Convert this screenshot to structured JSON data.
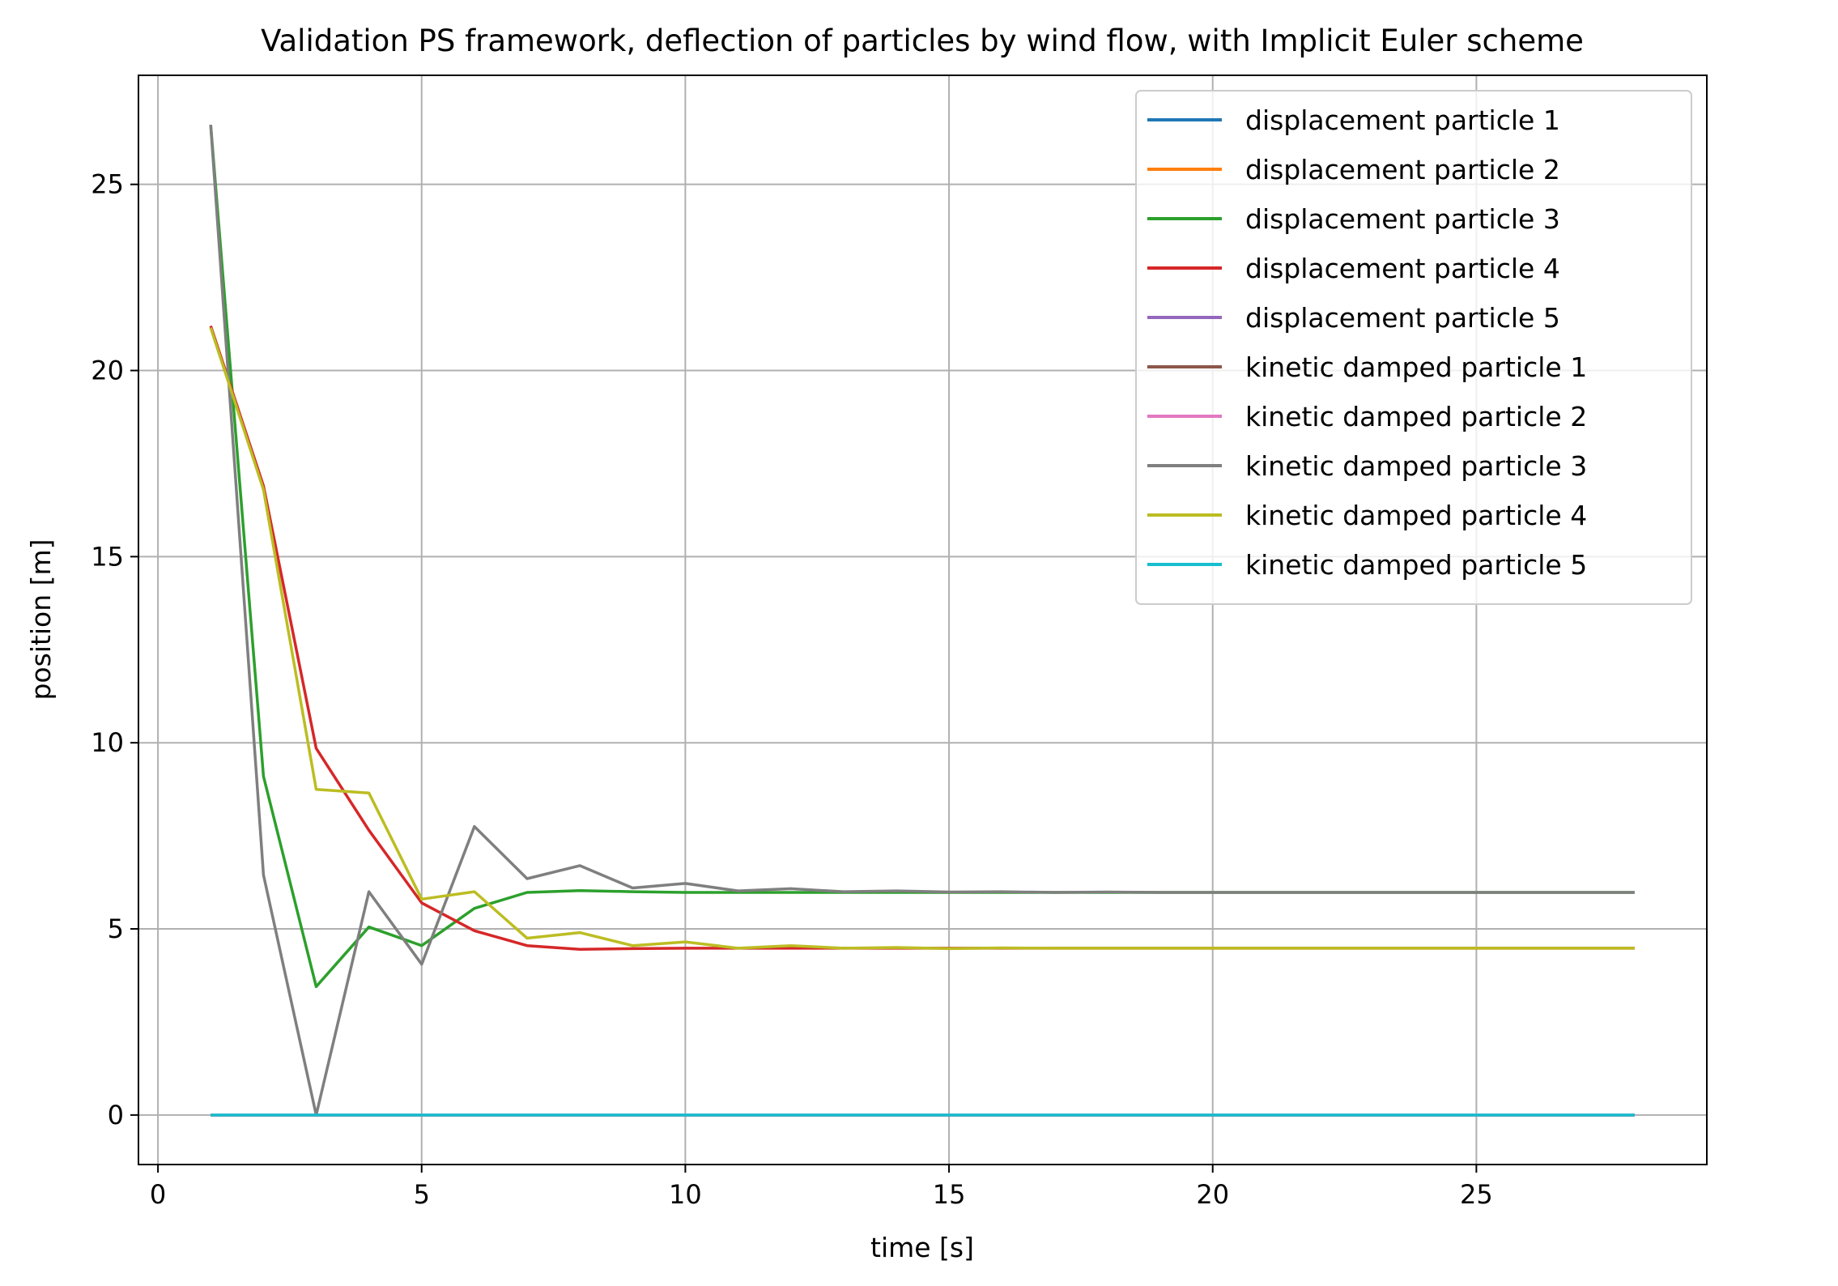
{
  "chart_data": {
    "type": "line",
    "title": "Validation PS framework, deflection of particles by wind flow, with Implicit Euler scheme",
    "xlabel": "time [s]",
    "ylabel": "position [m]",
    "xlim": [
      -0.37,
      29.37
    ],
    "ylim": [
      -1.33,
      27.93
    ],
    "xticks": [
      0,
      5,
      10,
      15,
      20,
      25
    ],
    "yticks": [
      0,
      5,
      10,
      15,
      20,
      25
    ],
    "xtick_labels": [
      "0",
      "5",
      "10",
      "15",
      "20",
      "25"
    ],
    "ytick_labels": [
      "0",
      "5",
      "10",
      "15",
      "20",
      "25"
    ],
    "grid": true,
    "legend_position": "top-right",
    "x": [
      1,
      2,
      3,
      4,
      5,
      6,
      7,
      8,
      9,
      10,
      11,
      12,
      13,
      14,
      15,
      16,
      17,
      18,
      19,
      20,
      21,
      22,
      23,
      24,
      25,
      26,
      27,
      28
    ],
    "series": [
      {
        "name": "displacement particle 1",
        "color": "#1f77b4",
        "values": [
          0,
          0,
          0,
          0,
          0,
          0,
          0,
          0,
          0,
          0,
          0,
          0,
          0,
          0,
          0,
          0,
          0,
          0,
          0,
          0,
          0,
          0,
          0,
          0,
          0,
          0,
          0,
          0
        ]
      },
      {
        "name": "displacement particle 2",
        "color": "#ff7f0e",
        "values": [
          0,
          0,
          0,
          0,
          0,
          0,
          0,
          0,
          0,
          0,
          0,
          0,
          0,
          0,
          0,
          0,
          0,
          0,
          0,
          0,
          0,
          0,
          0,
          0,
          0,
          0,
          0,
          0
        ]
      },
      {
        "name": "displacement particle 3",
        "color": "#2ca02c",
        "values": [
          26.6,
          9.1,
          3.45,
          5.05,
          4.55,
          5.55,
          5.98,
          6.03,
          6.0,
          5.98,
          5.98,
          5.98,
          5.98,
          5.98,
          5.98,
          5.98,
          5.98,
          5.98,
          5.98,
          5.98,
          5.98,
          5.98,
          5.98,
          5.98,
          5.98,
          5.98,
          5.98,
          5.98
        ]
      },
      {
        "name": "displacement particle 4",
        "color": "#d62728",
        "values": [
          21.2,
          16.9,
          9.85,
          7.65,
          5.7,
          4.95,
          4.55,
          4.45,
          4.47,
          4.48,
          4.48,
          4.48,
          4.48,
          4.48,
          4.48,
          4.48,
          4.48,
          4.48,
          4.48,
          4.48,
          4.48,
          4.48,
          4.48,
          4.48,
          4.48,
          4.48,
          4.48,
          4.48
        ]
      },
      {
        "name": "displacement particle 5",
        "color": "#9467bd",
        "values": [
          0,
          0,
          0,
          0,
          0,
          0,
          0,
          0,
          0,
          0,
          0,
          0,
          0,
          0,
          0,
          0,
          0,
          0,
          0,
          0,
          0,
          0,
          0,
          0,
          0,
          0,
          0,
          0
        ]
      },
      {
        "name": "kinetic damped particle 1",
        "color": "#8c564b",
        "values": [
          0,
          0,
          0,
          0,
          0,
          0,
          0,
          0,
          0,
          0,
          0,
          0,
          0,
          0,
          0,
          0,
          0,
          0,
          0,
          0,
          0,
          0,
          0,
          0,
          0,
          0,
          0,
          0
        ]
      },
      {
        "name": "kinetic damped particle 2",
        "color": "#e377c2",
        "values": [
          0,
          0,
          0,
          0,
          0,
          0,
          0,
          0,
          0,
          0,
          0,
          0,
          0,
          0,
          0,
          0,
          0,
          0,
          0,
          0,
          0,
          0,
          0,
          0,
          0,
          0,
          0,
          0
        ]
      },
      {
        "name": "kinetic damped particle 3",
        "color": "#7f7f7f",
        "values": [
          26.6,
          6.45,
          0.0,
          6.0,
          4.05,
          7.75,
          6.35,
          6.7,
          6.1,
          6.22,
          6.02,
          6.08,
          6.0,
          6.02,
          5.99,
          6.0,
          5.98,
          5.99,
          5.98,
          5.98,
          5.98,
          5.98,
          5.98,
          5.98,
          5.98,
          5.98,
          5.98,
          5.98
        ]
      },
      {
        "name": "kinetic damped particle 4",
        "color": "#bcbd22",
        "values": [
          21.15,
          16.8,
          8.75,
          8.65,
          5.8,
          6.0,
          4.75,
          4.9,
          4.55,
          4.65,
          4.48,
          4.55,
          4.48,
          4.5,
          4.47,
          4.49,
          4.48,
          4.48,
          4.48,
          4.48,
          4.48,
          4.48,
          4.48,
          4.48,
          4.48,
          4.48,
          4.48,
          4.48
        ]
      },
      {
        "name": "kinetic damped particle 5",
        "color": "#17becf",
        "values": [
          0,
          0,
          0,
          0,
          0,
          0,
          0,
          0,
          0,
          0,
          0,
          0,
          0,
          0,
          0,
          0,
          0,
          0,
          0,
          0,
          0,
          0,
          0,
          0,
          0,
          0,
          0,
          0
        ]
      }
    ]
  }
}
